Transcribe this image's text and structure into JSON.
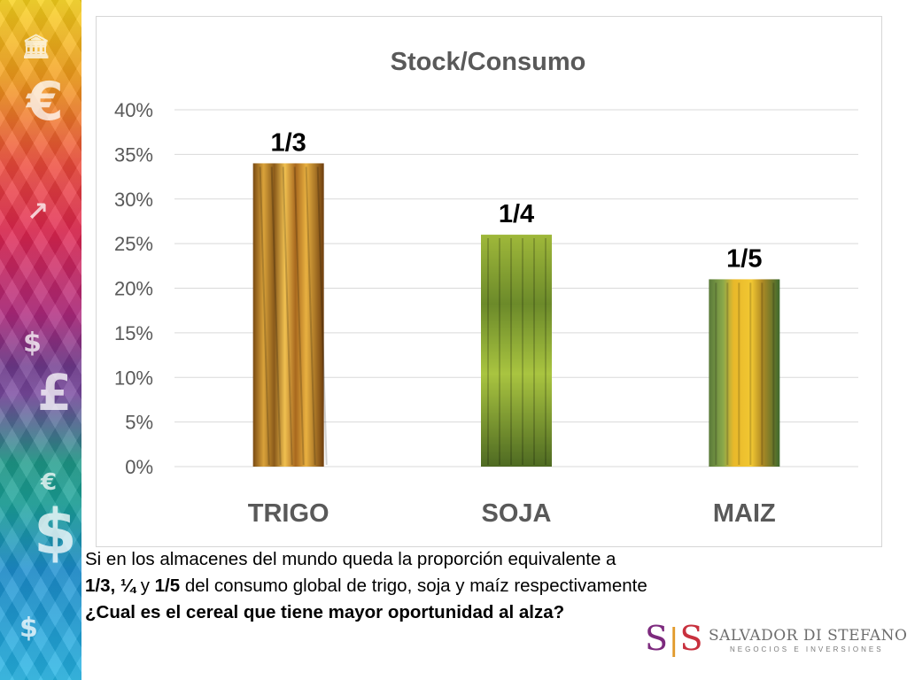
{
  "sidebar": {
    "icons": [
      "bank-icon",
      "euro-icon",
      "growth-chart-icon",
      "dollar-bag-icon",
      "pound-icon",
      "euro-coin-icon",
      "dollar-icon",
      "dollar-lock-icon"
    ],
    "colors": [
      "#f7d21c",
      "#ee4b3a",
      "#b1287d",
      "#1e9b8a",
      "#26b5e4"
    ]
  },
  "chart_data": {
    "type": "bar",
    "title": "Stock/Consumo",
    "categories": [
      "TRIGO",
      "SOJA",
      "MAIZ"
    ],
    "values": [
      34,
      26,
      21
    ],
    "value_unit": "%",
    "data_labels": [
      "1/3",
      "1/4",
      "1/5"
    ],
    "ylim": [
      0,
      40
    ],
    "yticks": [
      0,
      5,
      10,
      15,
      20,
      25,
      30,
      35,
      40
    ],
    "ytick_labels": [
      "0%",
      "5%",
      "10%",
      "15%",
      "20%",
      "25%",
      "30%",
      "35%",
      "40%"
    ],
    "grid": true,
    "bar_fills": [
      "wheat-image",
      "soy-leaves-image",
      "corn-image"
    ]
  },
  "caption": {
    "line1": "Si en los almacenes del mundo queda la proporción equivalente a",
    "line2_bold1": "1/3, ¼",
    "line2_mid1": " y ",
    "line2_bold2": "1/5",
    "line2_rest": " del consumo global de trigo, soja y maíz respectivamente",
    "line3": "¿Cual es el cereal que tiene mayor oportunidad al alza?"
  },
  "logo": {
    "mark_left": "S",
    "mark_right": "S",
    "name": "SALVADOR DI STEFANO",
    "tagline": "NEGOCIOS E INVERSIONES",
    "colors": {
      "purple": "#7d2a7e",
      "orange": "#e29a2b",
      "red": "#c8303e"
    }
  }
}
